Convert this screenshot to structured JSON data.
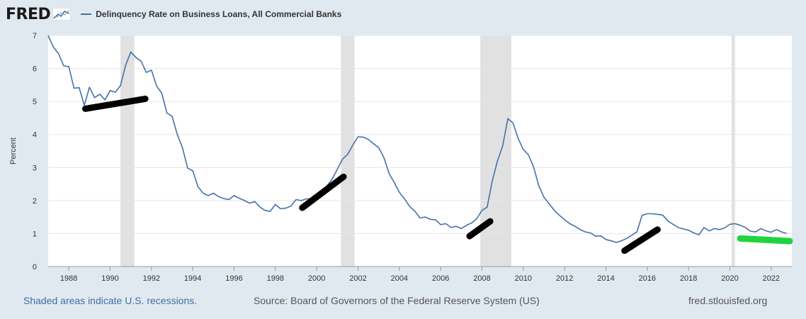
{
  "header": {
    "logo": "FRED",
    "series_title": "Delinquency Rate on Business Loans, All Commercial Banks",
    "legend_color": "#4572a7"
  },
  "footer": {
    "recession_note": "Shaded areas indicate U.S. recessions.",
    "source": "Source: Board of Governors of the Federal Reserve System (US)",
    "site": "fred.stlouisfed.org"
  },
  "chart_data": {
    "type": "line",
    "ylabel": "Percent",
    "xlabel": "",
    "ylim": [
      0,
      7
    ],
    "xlim": [
      1987.0,
      2023.0
    ],
    "yticks": [
      "0",
      "1",
      "2",
      "3",
      "4",
      "5",
      "6",
      "7"
    ],
    "xticks": [
      "1988",
      "1990",
      "1992",
      "1994",
      "1996",
      "1998",
      "2000",
      "2002",
      "2004",
      "2006",
      "2008",
      "2010",
      "2012",
      "2014",
      "2016",
      "2018",
      "2020",
      "2022"
    ],
    "grid": true,
    "line_color": "#4572a7",
    "recessions": [
      [
        1990.5,
        1991.17
      ],
      [
        2001.17,
        2001.83
      ],
      [
        2007.92,
        2009.42
      ],
      [
        2020.08,
        2020.25
      ]
    ],
    "recession_color": "#e1e1e1",
    "series": [
      {
        "name": "Delinquency Rate on Business Loans, All Commercial Banks",
        "x": [
          1987.0,
          1987.25,
          1987.5,
          1987.75,
          1988.0,
          1988.25,
          1988.5,
          1988.75,
          1989.0,
          1989.25,
          1989.5,
          1989.75,
          1990.0,
          1990.25,
          1990.5,
          1990.75,
          1991.0,
          1991.25,
          1991.5,
          1991.75,
          1992.0,
          1992.25,
          1992.5,
          1992.75,
          1993.0,
          1993.25,
          1993.5,
          1993.75,
          1994.0,
          1994.25,
          1994.5,
          1994.75,
          1995.0,
          1995.25,
          1995.5,
          1995.75,
          1996.0,
          1996.25,
          1996.5,
          1996.75,
          1997.0,
          1997.25,
          1997.5,
          1997.75,
          1998.0,
          1998.25,
          1998.5,
          1998.75,
          1999.0,
          1999.25,
          1999.5,
          1999.75,
          2000.0,
          2000.25,
          2000.5,
          2000.75,
          2001.0,
          2001.25,
          2001.5,
          2001.75,
          2002.0,
          2002.25,
          2002.5,
          2002.75,
          2003.0,
          2003.25,
          2003.5,
          2003.75,
          2004.0,
          2004.25,
          2004.5,
          2004.75,
          2005.0,
          2005.25,
          2005.5,
          2005.75,
          2006.0,
          2006.25,
          2006.5,
          2006.75,
          2007.0,
          2007.25,
          2007.5,
          2007.75,
          2008.0,
          2008.25,
          2008.5,
          2008.75,
          2009.0,
          2009.25,
          2009.5,
          2009.75,
          2010.0,
          2010.25,
          2010.5,
          2010.75,
          2011.0,
          2011.25,
          2011.5,
          2011.75,
          2012.0,
          2012.25,
          2012.5,
          2012.75,
          2013.0,
          2013.25,
          2013.5,
          2013.75,
          2014.0,
          2014.25,
          2014.5,
          2014.75,
          2015.0,
          2015.25,
          2015.5,
          2015.75,
          2016.0,
          2016.25,
          2016.5,
          2016.75,
          2017.0,
          2017.25,
          2017.5,
          2017.75,
          2018.0,
          2018.25,
          2018.5,
          2018.75,
          2019.0,
          2019.25,
          2019.5,
          2019.75,
          2020.0,
          2020.25,
          2020.5,
          2020.75,
          2021.0,
          2021.25,
          2021.5,
          2021.75,
          2022.0,
          2022.25,
          2022.5,
          2022.75
        ],
        "values": [
          7.0,
          6.65,
          6.45,
          6.08,
          6.05,
          5.4,
          5.42,
          4.88,
          5.43,
          5.12,
          5.22,
          5.05,
          5.33,
          5.28,
          5.48,
          6.1,
          6.5,
          6.33,
          6.22,
          5.88,
          5.95,
          5.47,
          5.25,
          4.65,
          4.55,
          4.0,
          3.6,
          2.98,
          2.9,
          2.42,
          2.22,
          2.15,
          2.22,
          2.12,
          2.06,
          2.03,
          2.15,
          2.07,
          2.0,
          1.92,
          1.97,
          1.8,
          1.7,
          1.67,
          1.88,
          1.75,
          1.77,
          1.83,
          2.03,
          2.0,
          2.05,
          2.05,
          2.08,
          2.28,
          2.45,
          2.65,
          2.95,
          3.25,
          3.4,
          3.68,
          3.93,
          3.92,
          3.85,
          3.72,
          3.6,
          3.3,
          2.82,
          2.55,
          2.25,
          2.05,
          1.82,
          1.68,
          1.47,
          1.5,
          1.43,
          1.42,
          1.27,
          1.3,
          1.18,
          1.22,
          1.15,
          1.25,
          1.32,
          1.45,
          1.7,
          1.8,
          2.6,
          3.2,
          3.65,
          4.48,
          4.35,
          3.88,
          3.55,
          3.38,
          3.02,
          2.45,
          2.1,
          1.9,
          1.7,
          1.55,
          1.42,
          1.3,
          1.22,
          1.12,
          1.05,
          1.02,
          0.92,
          0.93,
          0.82,
          0.78,
          0.73,
          0.78,
          0.85,
          0.95,
          1.05,
          1.55,
          1.6,
          1.6,
          1.58,
          1.56,
          1.38,
          1.28,
          1.18,
          1.14,
          1.1,
          1.02,
          0.96,
          1.18,
          1.08,
          1.15,
          1.12,
          1.17,
          1.28,
          1.3,
          1.25,
          1.18,
          1.07,
          1.05,
          1.15,
          1.08,
          1.04,
          1.12,
          1.05,
          1.0
        ]
      }
    ],
    "annotations": [
      {
        "color": "#000000",
        "x": [
          1988.8,
          1991.7
        ],
        "y": [
          4.78,
          5.08
        ]
      },
      {
        "color": "#000000",
        "x": [
          1999.3,
          2001.3
        ],
        "y": [
          1.78,
          2.72
        ]
      },
      {
        "color": "#000000",
        "x": [
          2007.4,
          2008.4
        ],
        "y": [
          0.92,
          1.37
        ]
      },
      {
        "color": "#000000",
        "x": [
          2014.9,
          2016.5
        ],
        "y": [
          0.48,
          1.12
        ]
      },
      {
        "color": "#21d33f",
        "x": [
          2020.5,
          2022.9
        ],
        "y": [
          0.85,
          0.77
        ]
      }
    ]
  }
}
